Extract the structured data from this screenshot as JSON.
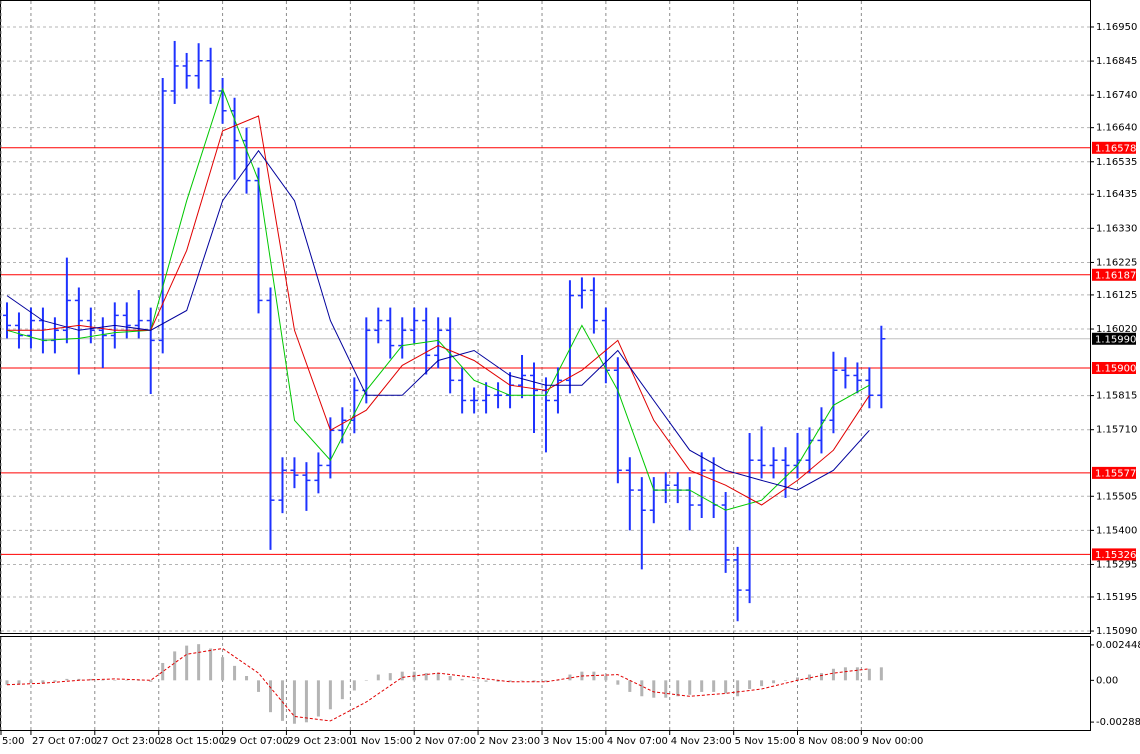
{
  "chart_data": [
    {
      "type": "ohlc",
      "xlim": [
        -0.5,
        90.42
      ],
      "ylim": [
        1.15084,
        1.1703
      ],
      "yticks": [
        {
          "value": 1.1695,
          "label": "1.16950"
        },
        1.16845,
        {
          "value": 1.1674,
          "label": "1.16740"
        },
        {
          "value": 1.1664,
          "label": "1.16640"
        },
        1.16535,
        1.16435,
        {
          "value": 1.1633,
          "label": "1.16330"
        },
        1.16225,
        1.16125,
        {
          "value": 1.1602,
          "label": "1.16020"
        },
        1.15815,
        {
          "value": 1.1571,
          "label": "1.15710"
        },
        1.15505,
        {
          "value": 1.154,
          "label": "1.15400"
        },
        1.15295,
        1.15195,
        {
          "value": 1.1509,
          "label": "1.15090"
        }
      ],
      "grid": true,
      "color": "#1e32ff",
      "open": [
        1.16062,
        1.16031,
        1.16,
        1.16046,
        1.15985,
        1.16016,
        1.16108,
        1.16046,
        1.16016,
        1.16,
        1.16062,
        1.16031,
        1.16046,
        1.15985,
        1.16753,
        1.1683,
        1.168,
        1.16846,
        1.16753,
        1.16692,
        1.166,
        1.16477,
        1.16108,
        1.15493,
        1.15585,
        1.1557,
        1.15554,
        1.156,
        1.15708,
        1.15739,
        1.15831,
        1.16016,
        1.16046,
        1.15969,
        1.16016,
        1.16046,
        1.15939,
        1.16016,
        1.15862,
        1.158,
        1.158,
        1.15816,
        1.15816,
        1.15847,
        1.15877,
        1.15831,
        1.158,
        1.15862,
        1.16123,
        1.16139,
        1.16046,
        1.15893,
        1.15585,
        1.15524,
        1.15462,
        1.15524,
        1.15539,
        1.15524,
        1.15478,
        1.15585,
        1.15478,
        1.15309,
        1.15216,
        1.15616,
        1.156,
        1.15616,
        1.156,
        1.15616,
        1.15677,
        1.15739,
        1.15893,
        1.15877,
        1.15862,
        1.15816
      ],
      "high": [
        1.16102,
        1.16071,
        1.16086,
        1.16086,
        1.16056,
        1.1624,
        1.16148,
        1.16086,
        1.16056,
        1.16102,
        1.16102,
        1.1614,
        1.16086,
        1.16793,
        1.16907,
        1.1687,
        1.169,
        1.16886,
        1.16793,
        1.16732,
        1.1664,
        1.16517,
        1.16148,
        1.15625,
        1.15625,
        1.1561,
        1.1564,
        1.15748,
        1.15779,
        1.15871,
        1.16056,
        1.16086,
        1.16086,
        1.16056,
        1.16086,
        1.16086,
        1.16056,
        1.16056,
        1.15902,
        1.1584,
        1.15856,
        1.15856,
        1.15887,
        1.1594,
        1.15917,
        1.15871,
        1.15902,
        1.1617,
        1.16179,
        1.16179,
        1.16086,
        1.15933,
        1.15625,
        1.15564,
        1.15564,
        1.15579,
        1.15579,
        1.15564,
        1.1564,
        1.15625,
        1.15518,
        1.15349,
        1.157,
        1.1572,
        1.15656,
        1.15656,
        1.157,
        1.15717,
        1.15779,
        1.1595,
        1.15933,
        1.15917,
        1.15902,
        1.1603
      ],
      "low": [
        1.15991,
        1.1596,
        1.1596,
        1.15945,
        1.15945,
        1.15976,
        1.1588,
        1.15976,
        1.159,
        1.1596,
        1.15991,
        1.15991,
        1.1582,
        1.15945,
        1.16713,
        1.1676,
        1.1676,
        1.16713,
        1.16652,
        1.1648,
        1.16437,
        1.16068,
        1.1534,
        1.15453,
        1.1553,
        1.1546,
        1.15514,
        1.1556,
        1.15668,
        1.15699,
        1.15791,
        1.15976,
        1.15929,
        1.15929,
        1.15976,
        1.1588,
        1.15899,
        1.15822,
        1.1576,
        1.1576,
        1.1576,
        1.15776,
        1.15776,
        1.15807,
        1.157,
        1.1564,
        1.1576,
        1.15822,
        1.16083,
        1.16006,
        1.15853,
        1.15545,
        1.154,
        1.1528,
        1.15422,
        1.15484,
        1.15484,
        1.154,
        1.15438,
        1.15438,
        1.15269,
        1.1512,
        1.15176,
        1.1556,
        1.1556,
        1.155,
        1.1556,
        1.15576,
        1.15637,
        1.15699,
        1.15837,
        1.15822,
        1.15776,
        1.15776
      ],
      "close": [
        1.16031,
        1.16,
        1.16046,
        1.15985,
        1.16016,
        1.16108,
        1.16046,
        1.16016,
        1.16,
        1.16062,
        1.16031,
        1.16046,
        1.15985,
        1.16753,
        1.1683,
        1.168,
        1.16846,
        1.16753,
        1.16692,
        1.166,
        1.16477,
        1.16108,
        1.15493,
        1.15585,
        1.1557,
        1.15554,
        1.156,
        1.15708,
        1.15739,
        1.15831,
        1.16016,
        1.16046,
        1.15969,
        1.16016,
        1.16046,
        1.15939,
        1.16016,
        1.15862,
        1.158,
        1.158,
        1.15816,
        1.15816,
        1.15847,
        1.15877,
        1.15831,
        1.158,
        1.15862,
        1.16123,
        1.16139,
        1.16046,
        1.15893,
        1.15585,
        1.15524,
        1.15462,
        1.15524,
        1.15539,
        1.15524,
        1.15478,
        1.15585,
        1.15478,
        1.15309,
        1.15216,
        1.15616,
        1.156,
        1.15616,
        1.156,
        1.15616,
        1.15677,
        1.15739,
        1.15893,
        1.15877,
        1.15862,
        1.15816,
        1.1599
      ],
      "series": [
        {
          "color": "#00c800",
          "x": [
            0,
            3,
            6,
            9,
            12,
            15,
            18,
            21,
            24,
            27,
            30,
            33,
            36,
            39,
            42,
            45,
            48,
            51,
            54,
            57,
            60,
            63,
            66,
            69,
            72
          ],
          "values": [
            1.16016,
            1.15985,
            1.15991,
            1.16009,
            1.16016,
            1.16415,
            1.16759,
            1.16477,
            1.15739,
            1.15616,
            1.15831,
            1.15969,
            1.15985,
            1.15862,
            1.15816,
            1.15816,
            1.16031,
            1.15831,
            1.15524,
            1.15524,
            1.15462,
            1.15493,
            1.156,
            1.15785,
            1.15847
          ]
        },
        {
          "color": "#e00000",
          "x": [
            0,
            3,
            6,
            9,
            12,
            15,
            18,
            21,
            24,
            27,
            30,
            33,
            36,
            39,
            42,
            45,
            48,
            51,
            54,
            57,
            60,
            63,
            66,
            69,
            72
          ],
          "values": [
            1.16016,
            1.16016,
            1.16031,
            1.16016,
            1.16016,
            1.16262,
            1.1663,
            1.16676,
            1.16016,
            1.15708,
            1.1577,
            1.15908,
            1.15969,
            1.15923,
            1.15847,
            1.15831,
            1.15893,
            1.15985,
            1.15739,
            1.15585,
            1.15539,
            1.15478,
            1.15554,
            1.15647,
            1.15816
          ]
        },
        {
          "color": "#00009c",
          "x": [
            0,
            3,
            6,
            9,
            12,
            15,
            18,
            21,
            24,
            27,
            30,
            33,
            36,
            39,
            42,
            45,
            48,
            51,
            54,
            57,
            60,
            63,
            66,
            69,
            72
          ],
          "values": [
            1.16123,
            1.16046,
            1.16016,
            1.16031,
            1.16016,
            1.16077,
            1.16415,
            1.16569,
            1.16415,
            1.16046,
            1.15816,
            1.15816,
            1.15923,
            1.15954,
            1.15877,
            1.15847,
            1.15847,
            1.15954,
            1.158,
            1.15647,
            1.15585,
            1.15554,
            1.15524,
            1.15585,
            1.15708
          ]
        }
      ],
      "levels": [
        1.16578,
        1.16187,
        {
          "value": 1.159,
          "label": "1.15900"
        },
        1.15577,
        1.15326
      ],
      "level_color": "#ff0000",
      "last_price": {
        "value": 1.1599,
        "label": "1.15990"
      }
    },
    {
      "type": "macd",
      "xlim": [
        -0.5,
        90.42
      ],
      "ylim": [
        -0.003432,
        0.002995
      ],
      "yticks": [
        0.002448,
        {
          "value": 0,
          "label": "0.00"
        },
        -0.002885
      ],
      "xticks": [
        {
          "value": -0.5,
          "label": "5:00"
        },
        {
          "value": 2,
          "label": "27 Oct 07:00"
        },
        {
          "value": 7.33,
          "label": "27 Oct 23:00"
        },
        {
          "value": 12.67,
          "label": "28 Oct 15:00"
        },
        {
          "value": 18,
          "label": "29 Oct 07:00"
        },
        {
          "value": 23.33,
          "label": "29 Oct 23:00"
        },
        {
          "value": 28.67,
          "label": "1 Nov 15:00"
        },
        {
          "value": 34,
          "label": "2 Nov 07:00"
        },
        {
          "value": 39.33,
          "label": "2 Nov 23:00"
        },
        {
          "value": 44.67,
          "label": "3 Nov 15:00"
        },
        {
          "value": 50,
          "label": "4 Nov 07:00"
        },
        {
          "value": 55.33,
          "label": "4 Nov 23:00"
        },
        {
          "value": 60.67,
          "label": "5 Nov 15:00"
        },
        {
          "value": 66,
          "label": "8 Nov 08:00"
        },
        {
          "value": 71.33,
          "label": "9 Nov 00:00"
        }
      ],
      "histogram_color": "#b4b4b4",
      "histogram": [
        -0.0003,
        -0.0003,
        -0.0002,
        -0.0002,
        -0.0001,
        0.0001,
        0.0001,
        0.0001,
        0,
        0,
        0,
        0,
        -0.0001,
        0.0012,
        0.002,
        0.0024,
        0.0025,
        0.0022,
        0.0016,
        0.001,
        0.0003,
        -0.0008,
        -0.0022,
        -0.0028,
        -0.003,
        -0.0029,
        -0.0025,
        -0.002,
        -0.0013,
        -0.0007,
        0,
        0.0004,
        0.0005,
        0.0006,
        0.0006,
        0.0005,
        0.0005,
        0.0003,
        0.0001,
        0,
        -0.0001,
        -0.0001,
        -0.0001,
        0,
        -0.0001,
        -0.0001,
        0,
        0.0004,
        0.0006,
        0.0006,
        0.0003,
        -0.0003,
        -0.0008,
        -0.0011,
        -0.0012,
        -0.0012,
        -0.0011,
        -0.001,
        -0.0008,
        -0.0008,
        -0.0009,
        -0.0011,
        -0.0006,
        -0.0004,
        -0.0002,
        0,
        0.0002,
        0.0004,
        0.0005,
        0.0008,
        0.0009,
        0.0009,
        0.0008,
        0.0009
      ],
      "signal": {
        "color": "#e00000",
        "x": [
          0,
          3,
          6,
          9,
          12,
          15,
          18,
          21,
          24,
          27,
          30,
          33,
          36,
          39,
          42,
          45,
          48,
          51,
          54,
          57,
          60,
          63,
          66,
          69,
          72
        ],
        "values": [
          -0.0003,
          -0.0002,
          0,
          0.0001,
          0,
          0.0018,
          0.0022,
          0.0005,
          -0.0025,
          -0.0028,
          -0.0015,
          0.0002,
          0.0005,
          0.0002,
          -0.0001,
          -0.0001,
          0.0003,
          0.0004,
          -0.0008,
          -0.0011,
          -0.0009,
          -0.0006,
          0,
          0.0005,
          0.0008
        ]
      }
    }
  ]
}
